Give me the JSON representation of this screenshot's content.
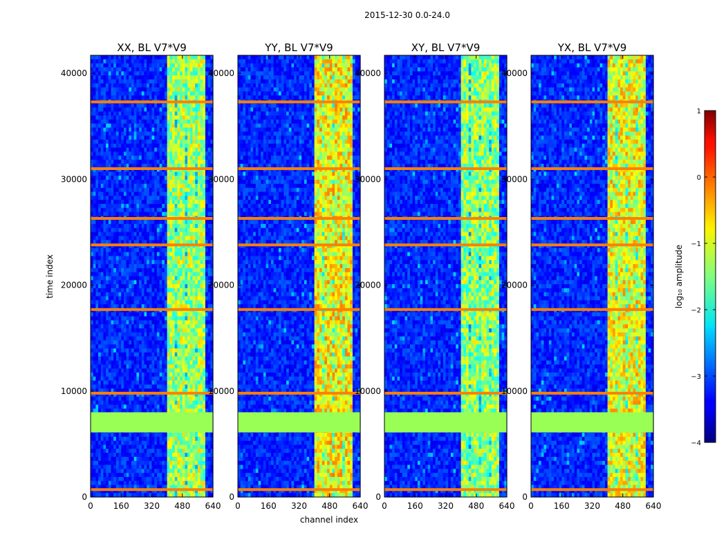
{
  "figure_title": "2015-12-30 0.0-24.0",
  "chart_data": {
    "type": "heatmap",
    "suptitle": "2015-12-30 0.0-24.0",
    "xlabel": "channel index",
    "ylabel": "time index",
    "xlim": [
      0,
      640
    ],
    "ylim": [
      0,
      41700
    ],
    "xticks": [
      0,
      160,
      320,
      480,
      640
    ],
    "yticks": [
      0,
      10000,
      20000,
      30000,
      40000
    ],
    "panels": [
      {
        "title": "XX, BL V7*V9",
        "band_strength": 0.55
      },
      {
        "title": "YY, BL V7*V9",
        "band_strength": 0.85
      },
      {
        "title": "XY, BL V7*V9",
        "band_strength": 0.5
      },
      {
        "title": "YX, BL V7*V9",
        "band_strength": 0.8
      }
    ],
    "high_amplitude_channel_range": [
      400,
      600
    ],
    "flagged_time_ranges": [
      [
        6100,
        8000
      ]
    ],
    "flagged_time_rows": [
      700,
      9800,
      17700,
      23800,
      26300,
      31000,
      37300
    ],
    "colorbar": {
      "label": "log₁₀ amplitude",
      "range": [
        -4,
        1
      ],
      "ticks": [
        1,
        0,
        -1,
        -2,
        -3,
        -4
      ],
      "tick_labels": [
        "1",
        "0",
        "−1",
        "−2",
        "−3",
        "−4"
      ]
    }
  }
}
